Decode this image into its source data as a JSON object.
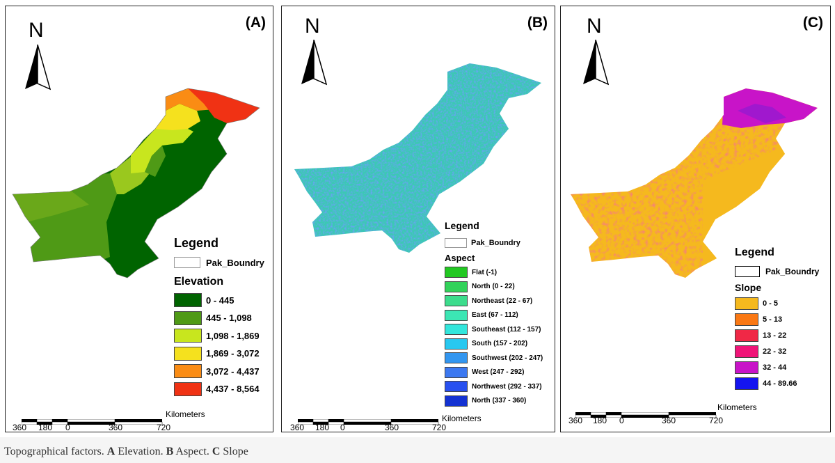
{
  "north_letter": "N",
  "km_label": "Kilometers",
  "scale_ticks": [
    "360",
    "180",
    "0",
    "360",
    "720"
  ],
  "panels": [
    {
      "label": "(A)",
      "legend_title": "Legend",
      "boundary_label": "Pak_Boundry",
      "layer_title": "Elevation",
      "items": [
        {
          "label": "0 - 445",
          "color": "#006400"
        },
        {
          "label": "445 - 1,098",
          "color": "#4f9a16"
        },
        {
          "label": "1,098 - 1,869",
          "color": "#c8e61e"
        },
        {
          "label": "1,869 - 3,072",
          "color": "#f5e11e"
        },
        {
          "label": "3,072 - 4,437",
          "color": "#fa8c14"
        },
        {
          "label": "4,437 - 8,564",
          "color": "#f03214"
        }
      ]
    },
    {
      "label": "(B)",
      "legend_title": "Legend",
      "boundary_label": "Pak_Boundry",
      "layer_title": "Aspect",
      "items": [
        {
          "label": "Flat (-1)",
          "color": "#22c822"
        },
        {
          "label": "North (0 - 22)",
          "color": "#32d25a"
        },
        {
          "label": "Northeast (22 - 67)",
          "color": "#3cdc8c"
        },
        {
          "label": "East (67 - 112)",
          "color": "#3ce6b4"
        },
        {
          "label": "Southeast (112 - 157)",
          "color": "#32e6dc"
        },
        {
          "label": "South (157 - 202)",
          "color": "#28c8f0"
        },
        {
          "label": "Southwest (202 - 247)",
          "color": "#3296f0"
        },
        {
          "label": "West (247 - 292)",
          "color": "#3c78f0"
        },
        {
          "label": "Northwest (292 - 337)",
          "color": "#2850f0"
        },
        {
          "label": "North (337 - 360)",
          "color": "#1432d2"
        }
      ]
    },
    {
      "label": "(C)",
      "legend_title": "Legend",
      "boundary_label": "Pak_Boundry",
      "layer_title": "Slope",
      "items": [
        {
          "label": "0 - 5",
          "color": "#f5b91e"
        },
        {
          "label": "5 - 13",
          "color": "#fa7814"
        },
        {
          "label": "13 - 22",
          "color": "#f02846"
        },
        {
          "label": "22 - 32",
          "color": "#f01478"
        },
        {
          "label": "32 - 44",
          "color": "#c814c8"
        },
        {
          "label": "44 - 89.66",
          "color": "#1414f0"
        }
      ]
    }
  ],
  "caption": {
    "lead": "Topographical factors. ",
    "a_letter": "A",
    "a_text": " Elevation. ",
    "b_letter": "B",
    "b_text": " Aspect. ",
    "c_letter": "C",
    "c_text": " Slope"
  }
}
